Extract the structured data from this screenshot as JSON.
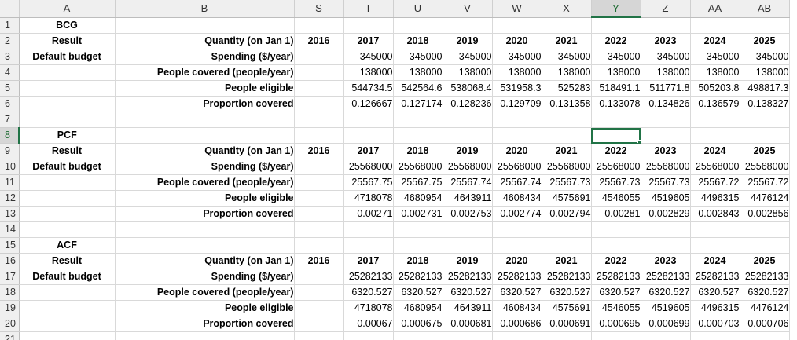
{
  "columns": [
    "A",
    "B",
    "S",
    "T",
    "U",
    "V",
    "W",
    "X",
    "Y",
    "Z",
    "AA",
    "AB"
  ],
  "selected_column": "Y",
  "selected_row": "8",
  "rows_num": [
    "1",
    "2",
    "3",
    "4",
    "5",
    "6",
    "7",
    "8",
    "9",
    "10",
    "11",
    "12",
    "13",
    "14",
    "15",
    "16",
    "17",
    "18",
    "19",
    "20",
    "21"
  ],
  "sections": [
    {
      "title": "BCG",
      "result_label": "Result",
      "qty_header": "Quantity (on Jan 1)",
      "years": [
        "2016",
        "2017",
        "2018",
        "2019",
        "2020",
        "2021",
        "2022",
        "2023",
        "2024",
        "2025"
      ],
      "budget_label": "Default budget",
      "rows": [
        {
          "label": "Spending ($/year)",
          "values": [
            "345000",
            "345000",
            "345000",
            "345000",
            "345000",
            "345000",
            "345000",
            "345000",
            "345000"
          ]
        },
        {
          "label": "People covered (people/year)",
          "values": [
            "138000",
            "138000",
            "138000",
            "138000",
            "138000",
            "138000",
            "138000",
            "138000",
            "138000"
          ]
        },
        {
          "label": "People eligible",
          "values": [
            "544734.5",
            "542564.6",
            "538068.4",
            "531958.3",
            "525283",
            "518491.1",
            "511771.8",
            "505203.8",
            "498817.3"
          ]
        },
        {
          "label": "Proportion covered",
          "values": [
            "0.126667",
            "0.127174",
            "0.128236",
            "0.129709",
            "0.131358",
            "0.133078",
            "0.134826",
            "0.136579",
            "0.138327"
          ]
        }
      ]
    },
    {
      "title": "PCF",
      "result_label": "Result",
      "qty_header": "Quantity (on Jan 1)",
      "years": [
        "2016",
        "2017",
        "2018",
        "2019",
        "2020",
        "2021",
        "2022",
        "2023",
        "2024",
        "2025"
      ],
      "budget_label": "Default budget",
      "rows": [
        {
          "label": "Spending ($/year)",
          "values": [
            "25568000",
            "25568000",
            "25568000",
            "25568000",
            "25568000",
            "25568000",
            "25568000",
            "25568000",
            "25568000"
          ]
        },
        {
          "label": "People covered (people/year)",
          "values": [
            "25567.75",
            "25567.75",
            "25567.74",
            "25567.74",
            "25567.73",
            "25567.73",
            "25567.73",
            "25567.72",
            "25567.72"
          ]
        },
        {
          "label": "People eligible",
          "values": [
            "4718078",
            "4680954",
            "4643911",
            "4608434",
            "4575691",
            "4546055",
            "4519605",
            "4496315",
            "4476124"
          ]
        },
        {
          "label": "Proportion covered",
          "values": [
            "0.00271",
            "0.002731",
            "0.002753",
            "0.002774",
            "0.002794",
            "0.00281",
            "0.002829",
            "0.002843",
            "0.002856"
          ]
        }
      ]
    },
    {
      "title": "ACF",
      "result_label": "Result",
      "qty_header": "Quantity (on Jan 1)",
      "years": [
        "2016",
        "2017",
        "2018",
        "2019",
        "2020",
        "2021",
        "2022",
        "2023",
        "2024",
        "2025"
      ],
      "budget_label": "Default budget",
      "rows": [
        {
          "label": "Spending ($/year)",
          "values": [
            "25282133",
            "25282133",
            "25282133",
            "25282133",
            "25282133",
            "25282133",
            "25282133",
            "25282133",
            "25282133"
          ]
        },
        {
          "label": "People covered (people/year)",
          "values": [
            "6320.527",
            "6320.527",
            "6320.527",
            "6320.527",
            "6320.527",
            "6320.527",
            "6320.527",
            "6320.527",
            "6320.527"
          ]
        },
        {
          "label": "People eligible",
          "values": [
            "4718078",
            "4680954",
            "4643911",
            "4608434",
            "4575691",
            "4546055",
            "4519605",
            "4496315",
            "4476124"
          ]
        },
        {
          "label": "Proportion covered",
          "values": [
            "0.00067",
            "0.000675",
            "0.000681",
            "0.000686",
            "0.000691",
            "0.000695",
            "0.000699",
            "0.000703",
            "0.000706"
          ]
        }
      ]
    }
  ]
}
